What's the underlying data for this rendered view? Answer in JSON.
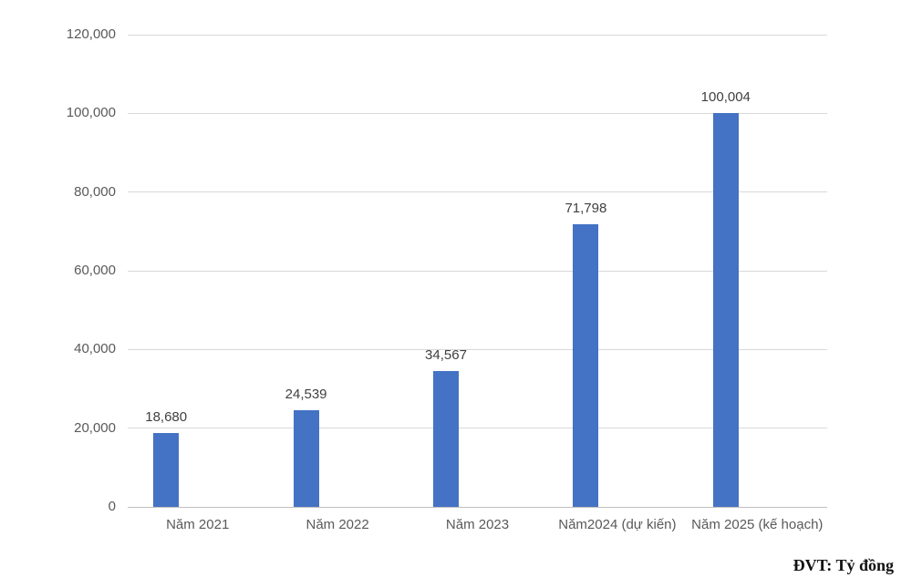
{
  "chart_data": {
    "type": "bar",
    "title": "",
    "categories": [
      "Năm 2021",
      "Năm 2022",
      "Năm 2023",
      "Năm2024 (dự kiến)",
      "Năm 2025 (kế hoạch)"
    ],
    "values": [
      18680,
      24539,
      34567,
      71798,
      100004
    ],
    "value_labels": [
      "18,680",
      "24,539",
      "34,567",
      "71,798",
      "100,004"
    ],
    "xlabel": "",
    "ylabel": "",
    "ylim": [
      0,
      120000
    ],
    "ytick_interval": 20000,
    "ytick_labels": [
      "0",
      "20,000",
      "40,000",
      "60,000",
      "80,000",
      "100,000",
      "120,000"
    ],
    "grid": "horizontal",
    "legend_position": "none",
    "unit_note": "ĐVT: Tỷ đồng",
    "colors": {
      "bar_fill": "#4472c4",
      "gridline": "#d9d9d9",
      "axis_line": "#bfbfbf",
      "tick_label": "#595959",
      "category_label": "#595959",
      "value_label": "#404040",
      "unit_note": "#111111"
    }
  }
}
